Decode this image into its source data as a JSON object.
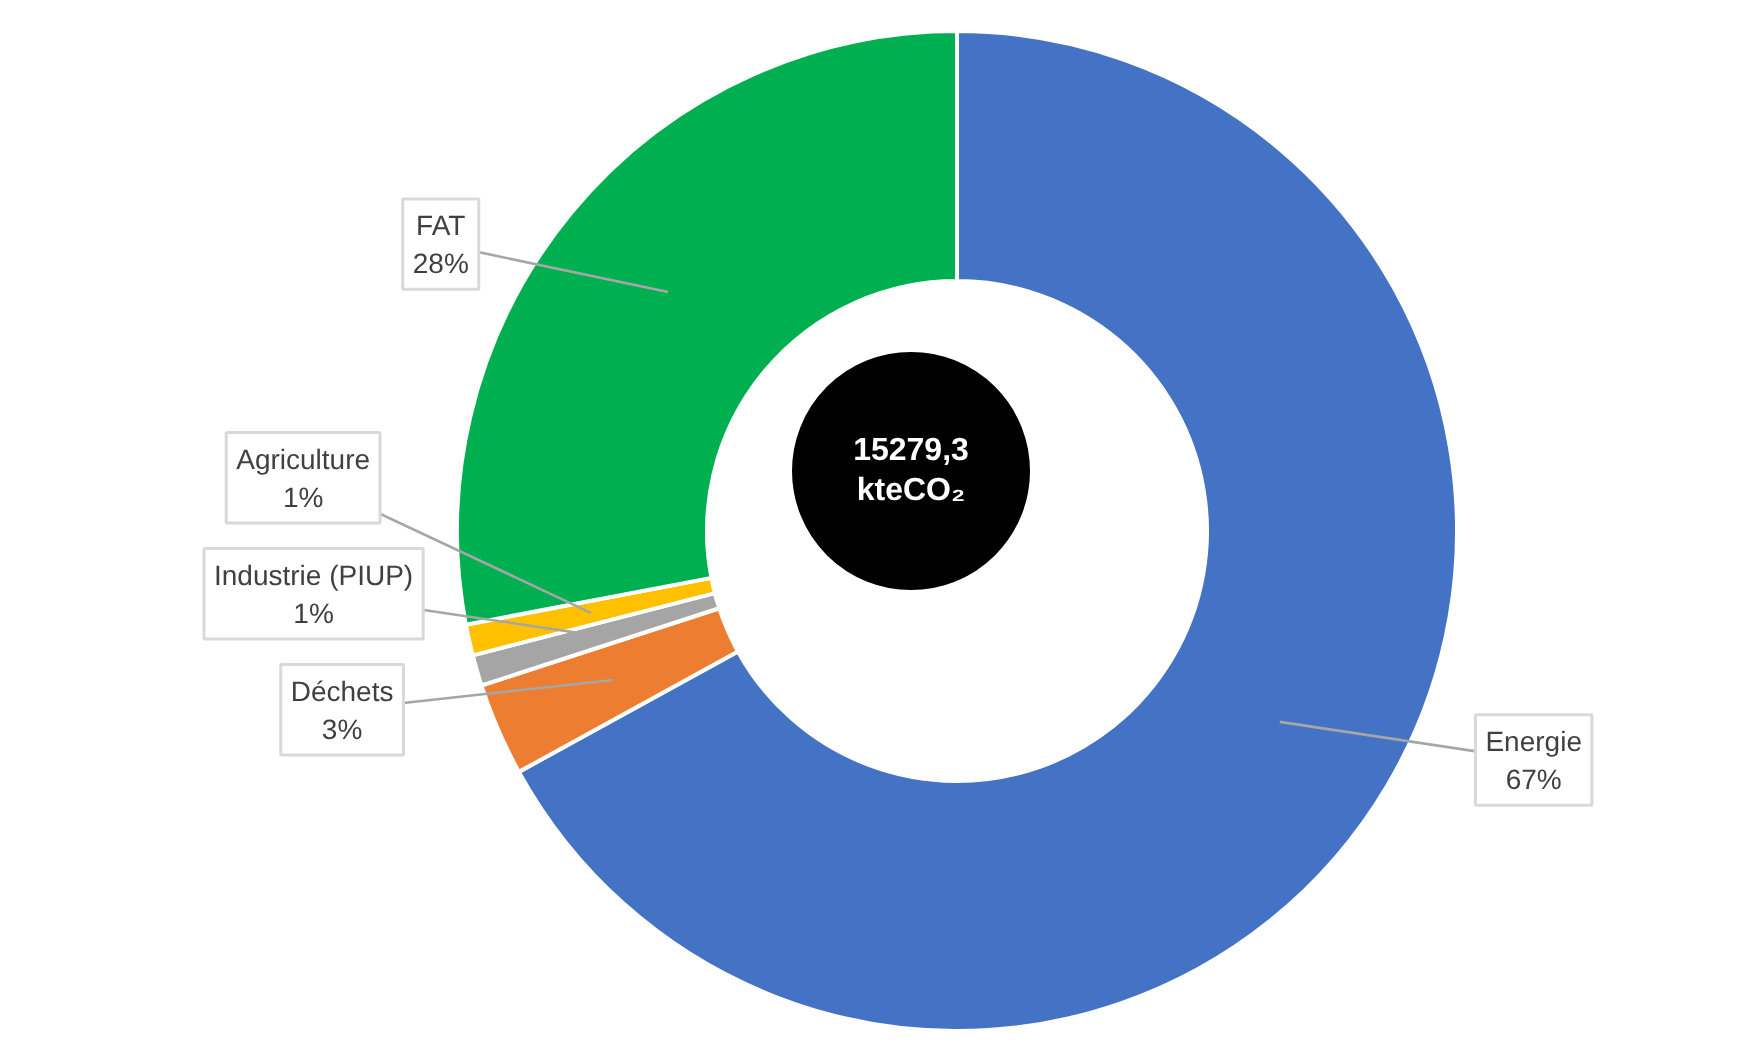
{
  "chart_data": {
    "type": "donut",
    "categories": [
      "Energie",
      "Déchets",
      "Industrie (PIUP)",
      "Agriculture",
      "FAT"
    ],
    "values": [
      67,
      3,
      1,
      1,
      28
    ],
    "colors": [
      "#4472c4",
      "#ed7d31",
      "#a5a5a5",
      "#ffc000",
      "#00b050"
    ],
    "value_labels": [
      "67%",
      "3%",
      "1%",
      "1%",
      "28%"
    ],
    "annotations": [
      "15279,3 kteCO₂"
    ]
  }
}
